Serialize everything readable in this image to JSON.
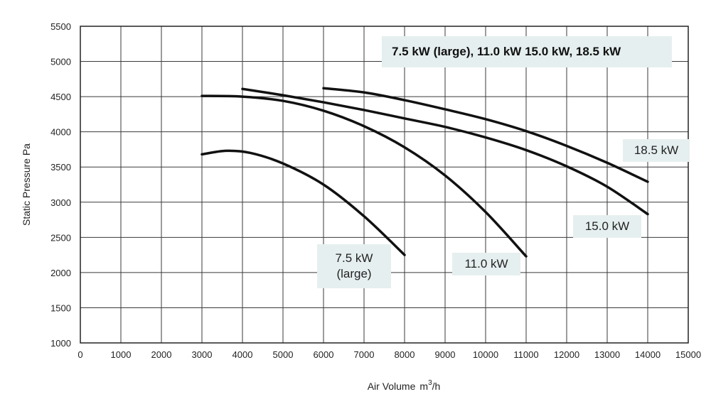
{
  "chart_data": {
    "type": "line",
    "title": "",
    "legend_text": "7.5 kW (large), 11.0 kW 15.0 kW, 18.5 kW",
    "xlabel": "Air Volume",
    "xlabel_unit_base": "m",
    "xlabel_unit_sup": "3",
    "xlabel_unit_tail": "/h",
    "ylabel": "Static Pressure Pa",
    "xlim": [
      0,
      15000
    ],
    "ylim": [
      1000,
      5500
    ],
    "x_ticks": [
      "0",
      "1000",
      "2000",
      "3000",
      "4000",
      "5000",
      "6000",
      "7000",
      "8000",
      "9000",
      "10000",
      "11000",
      "12000",
      "13000",
      "14000",
      "15000"
    ],
    "y_ticks": [
      "1000",
      "1500",
      "2000",
      "2500",
      "3000",
      "3500",
      "4000",
      "4500",
      "5000",
      "5500"
    ],
    "grid": true,
    "series": [
      {
        "name": "7.5 kW (large)",
        "label_lines": [
          "7.5 kW",
          "(large)"
        ],
        "x": [
          3000,
          3600,
          4200,
          5000,
          6000,
          7000,
          8000
        ],
        "y": [
          3680,
          3730,
          3700,
          3550,
          3250,
          2800,
          2250
        ]
      },
      {
        "name": "11.0 kW",
        "label_lines": [
          "11.0 kW"
        ],
        "x": [
          3000,
          4000,
          5000,
          6000,
          7000,
          8000,
          9000,
          10000,
          11000
        ],
        "y": [
          4510,
          4500,
          4440,
          4300,
          4080,
          3780,
          3380,
          2860,
          2230
        ]
      },
      {
        "name": "15.0 kW",
        "label_lines": [
          "15.0 kW"
        ],
        "x": [
          4000,
          5000,
          6000,
          7000,
          8000,
          9000,
          10000,
          11000,
          12000,
          13000,
          14000
        ],
        "y": [
          4610,
          4520,
          4420,
          4310,
          4190,
          4070,
          3920,
          3740,
          3510,
          3220,
          2830
        ]
      },
      {
        "name": "18.5 kW",
        "label_lines": [
          "18.5 kW"
        ],
        "x": [
          6000,
          7000,
          8000,
          9000,
          10000,
          11000,
          12000,
          13000,
          14000
        ],
        "y": [
          4620,
          4560,
          4450,
          4320,
          4180,
          4010,
          3800,
          3560,
          3290
        ]
      }
    ]
  }
}
